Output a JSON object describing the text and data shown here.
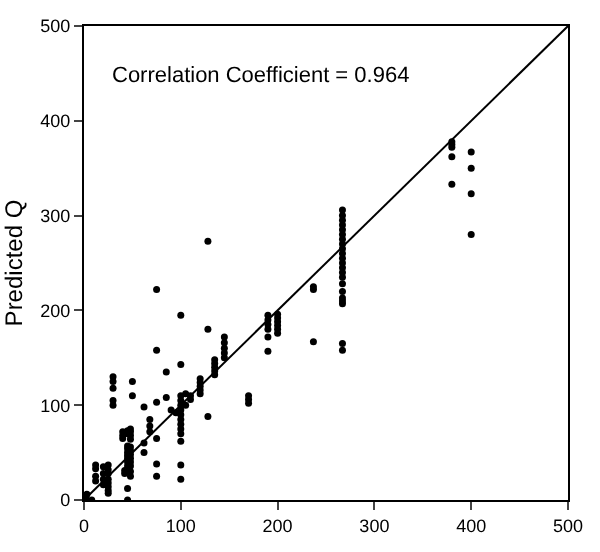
{
  "chart_data": {
    "type": "scatter",
    "ylabel": "Predicted Q",
    "annotations": [
      "Correlation Coefficient = 0.964"
    ],
    "xlim": [
      0,
      500
    ],
    "ylim": [
      0,
      500
    ],
    "xticks": [
      0,
      100,
      200,
      300,
      400,
      500
    ],
    "yticks": [
      0,
      100,
      200,
      300,
      400,
      500
    ],
    "grid": false,
    "marker": "circle",
    "series": [
      {
        "color": "#000000",
        "x": [
          267,
          267,
          267,
          267,
          267,
          267,
          267,
          267,
          267,
          267,
          267,
          267,
          267,
          267,
          267,
          267,
          267,
          267,
          267,
          267,
          267,
          267,
          380,
          380,
          380,
          380,
          380,
          400,
          400,
          400,
          400,
          237,
          237,
          237,
          190,
          190,
          190,
          190,
          190,
          190,
          200,
          200,
          200,
          200,
          200,
          200,
          128,
          128,
          128,
          100,
          100,
          100,
          100,
          100,
          100,
          100,
          100,
          100,
          100,
          100,
          100,
          100,
          100,
          105,
          105,
          110,
          110,
          120,
          120,
          120,
          120,
          120,
          135,
          135,
          135,
          135,
          135,
          145,
          145,
          145,
          145,
          145,
          170,
          170,
          170,
          75,
          75,
          75,
          75,
          75,
          75,
          85,
          85,
          62,
          62,
          62,
          68,
          68,
          68,
          45,
          45,
          45,
          45,
          45,
          45,
          45,
          45,
          45,
          45,
          45,
          48,
          48,
          48,
          48,
          48,
          48,
          48,
          48,
          48,
          48,
          48,
          48,
          50,
          50,
          30,
          30,
          30,
          30,
          30,
          40,
          40,
          40,
          25,
          25,
          25,
          25,
          25,
          25,
          25,
          25,
          20,
          20,
          20,
          20,
          12,
          12,
          12,
          12,
          2,
          3,
          8,
          90,
          95,
          42,
          42
        ],
        "values": [
          306,
          300,
          295,
          290,
          285,
          280,
          275,
          270,
          265,
          260,
          255,
          250,
          245,
          240,
          235,
          228,
          220,
          213,
          210,
          207,
          165,
          158,
          378,
          375,
          372,
          362,
          333,
          367,
          350,
          323,
          280,
          225,
          222,
          167,
          195,
          190,
          185,
          180,
          172,
          157,
          196,
          192,
          188,
          184,
          180,
          176,
          273,
          180,
          88,
          195,
          143,
          110,
          105,
          100,
          95,
          90,
          85,
          80,
          75,
          70,
          62,
          37,
          22,
          112,
          100,
          110,
          106,
          128,
          124,
          120,
          116,
          112,
          148,
          144,
          140,
          136,
          132,
          172,
          166,
          160,
          155,
          150,
          110,
          106,
          102,
          222,
          158,
          103,
          65,
          38,
          25,
          135,
          108,
          98,
          60,
          50,
          85,
          78,
          72,
          73,
          70,
          57,
          54,
          50,
          47,
          44,
          40,
          36,
          12,
          0,
          75,
          72,
          68,
          64,
          56,
          52,
          48,
          44,
          40,
          36,
          30,
          25,
          125,
          110,
          130,
          125,
          118,
          105,
          100,
          72,
          68,
          65,
          37,
          32,
          28,
          22,
          18,
          14,
          10,
          7,
          35,
          28,
          22,
          16,
          37,
          33,
          25,
          20,
          2,
          6,
          0,
          95,
          92,
          28,
          31
        ]
      },
      {
        "type": "line",
        "color": "#000000",
        "marker": "none",
        "line_style": "solid",
        "x": [
          0,
          500
        ],
        "values": [
          0,
          500
        ]
      }
    ]
  }
}
